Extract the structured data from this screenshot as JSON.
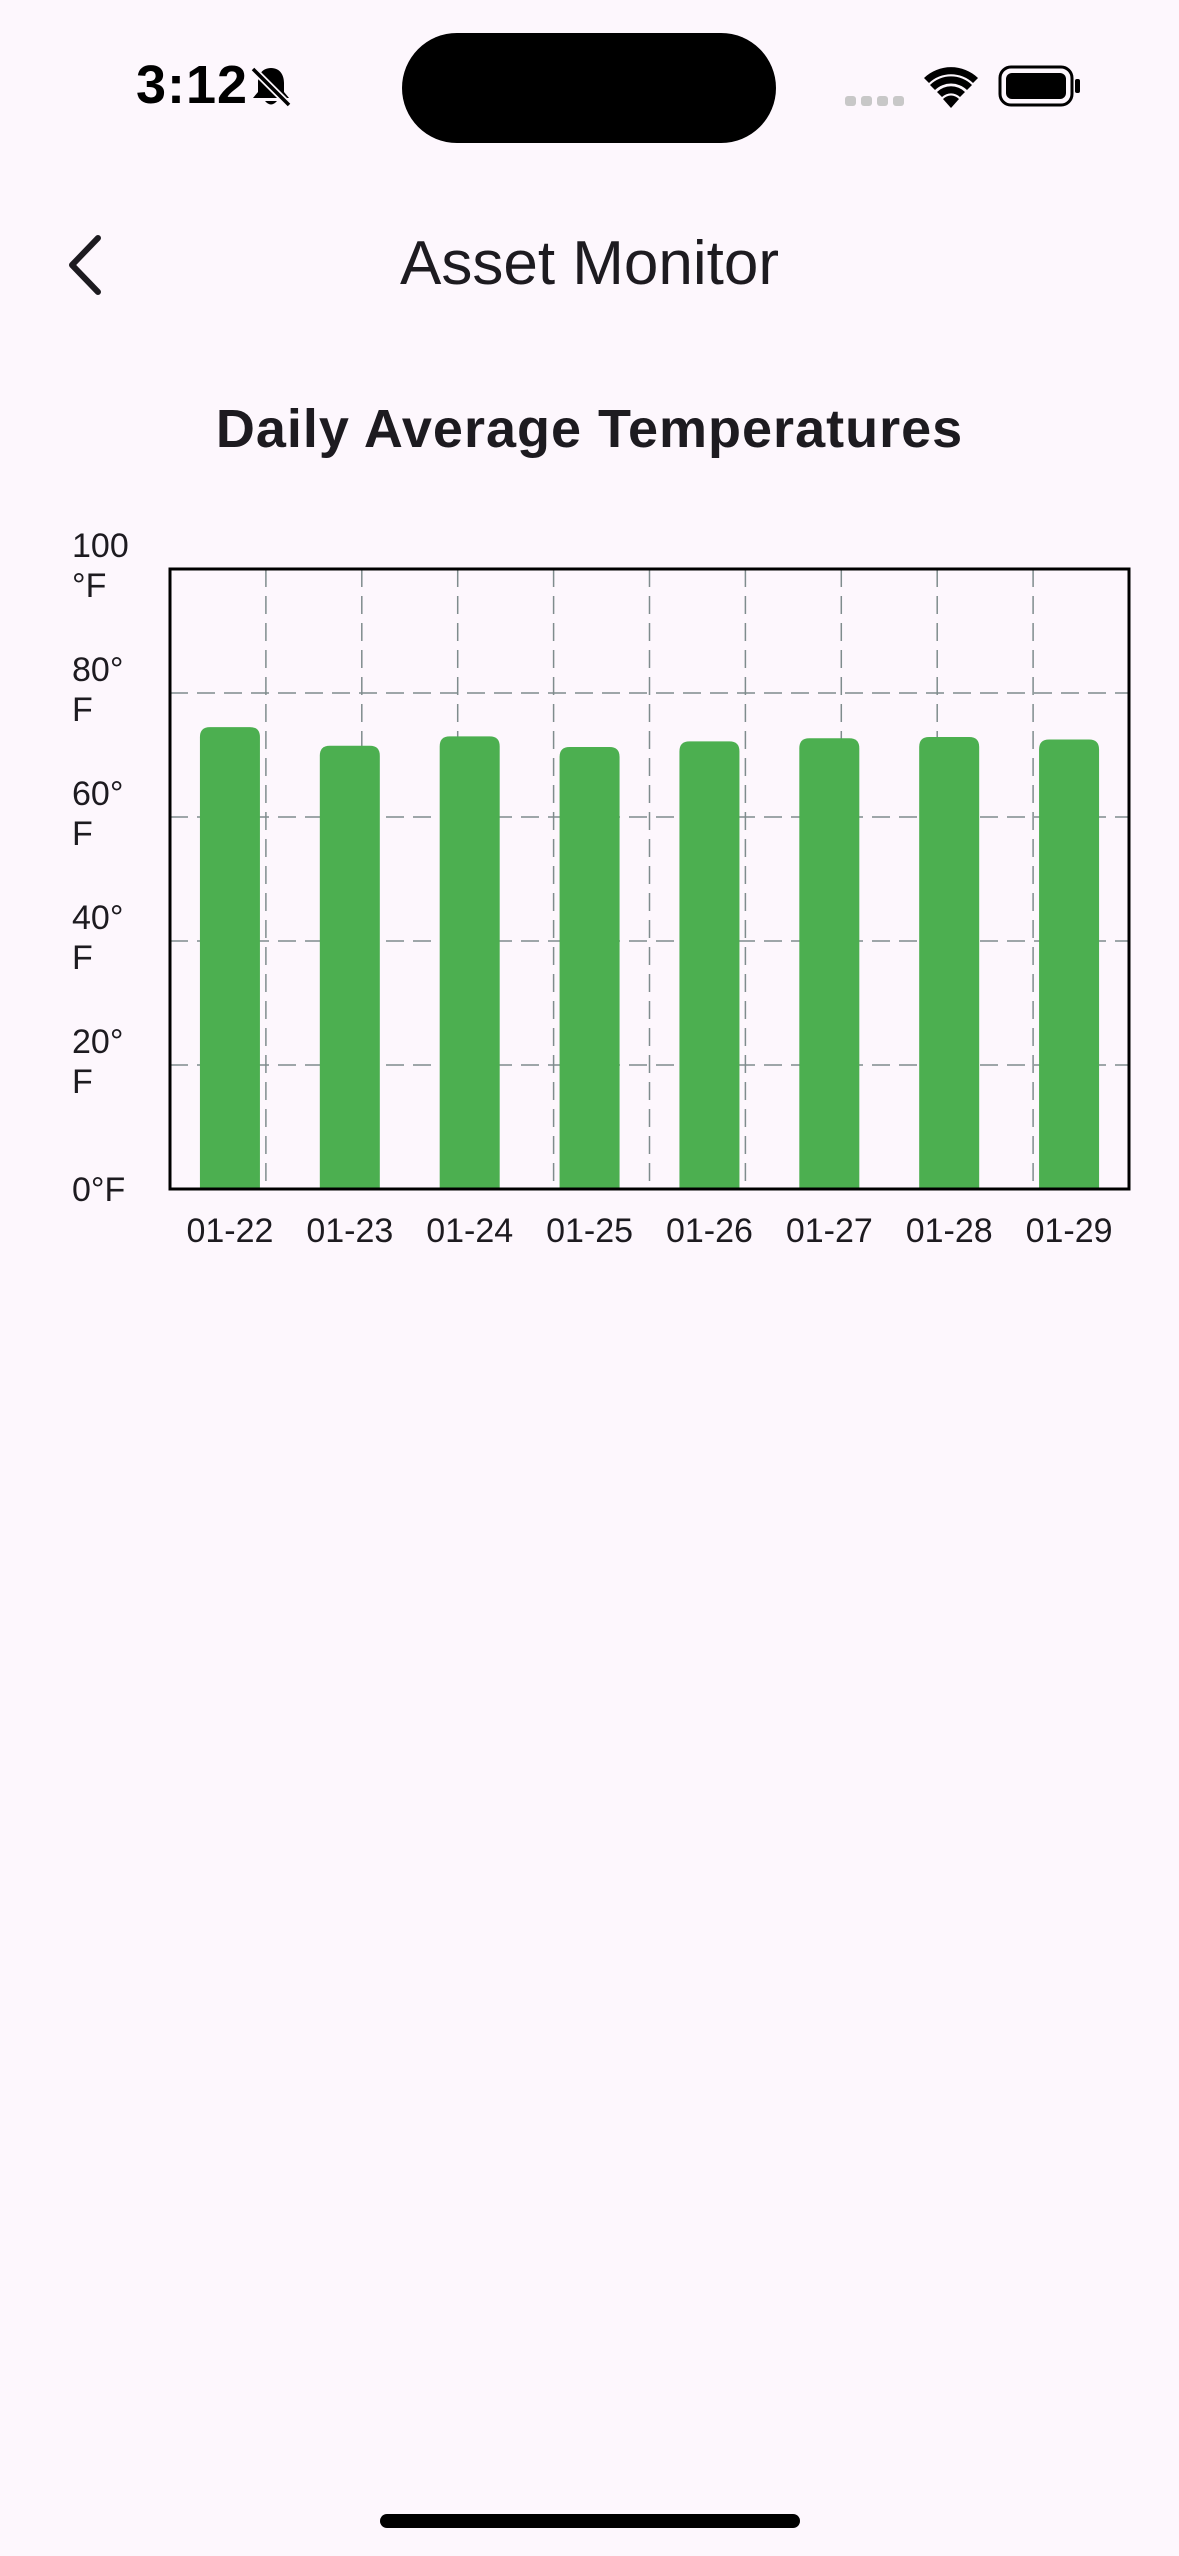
{
  "status_bar": {
    "time": "3:12"
  },
  "app_bar": {
    "title": "Asset Monitor"
  },
  "icons": {
    "back": "chevron-left-icon",
    "bell": "bell-slash-icon",
    "wifi": "wifi-icon",
    "battery": "battery-icon",
    "signal": "cellular-signal-icon"
  },
  "colors": {
    "bar": "#4caf50",
    "background": "#fdf7fd",
    "grid": "#7f8c8d"
  },
  "chart_data": {
    "type": "bar",
    "title": "Daily Average Temperatures",
    "categories": [
      "01-22",
      "01-23",
      "01-24",
      "01-25",
      "01-26",
      "01-27",
      "01-28",
      "01-29"
    ],
    "values": [
      74.5,
      71.5,
      73,
      71.3,
      72.2,
      72.7,
      72.9,
      72.5
    ],
    "y_ticks": [
      {
        "value": 0,
        "label": [
          "0°F"
        ]
      },
      {
        "value": 20,
        "label": [
          "20°",
          "F"
        ]
      },
      {
        "value": 40,
        "label": [
          "40°",
          "F"
        ]
      },
      {
        "value": 60,
        "label": [
          "60°",
          "F"
        ]
      },
      {
        "value": 80,
        "label": [
          "80°",
          "F"
        ]
      },
      {
        "value": 100,
        "label": [
          "100",
          "°F"
        ]
      }
    ],
    "ylim": [
      0,
      100
    ],
    "xlabel": "",
    "ylabel": "",
    "grid": true,
    "legend": "none"
  }
}
